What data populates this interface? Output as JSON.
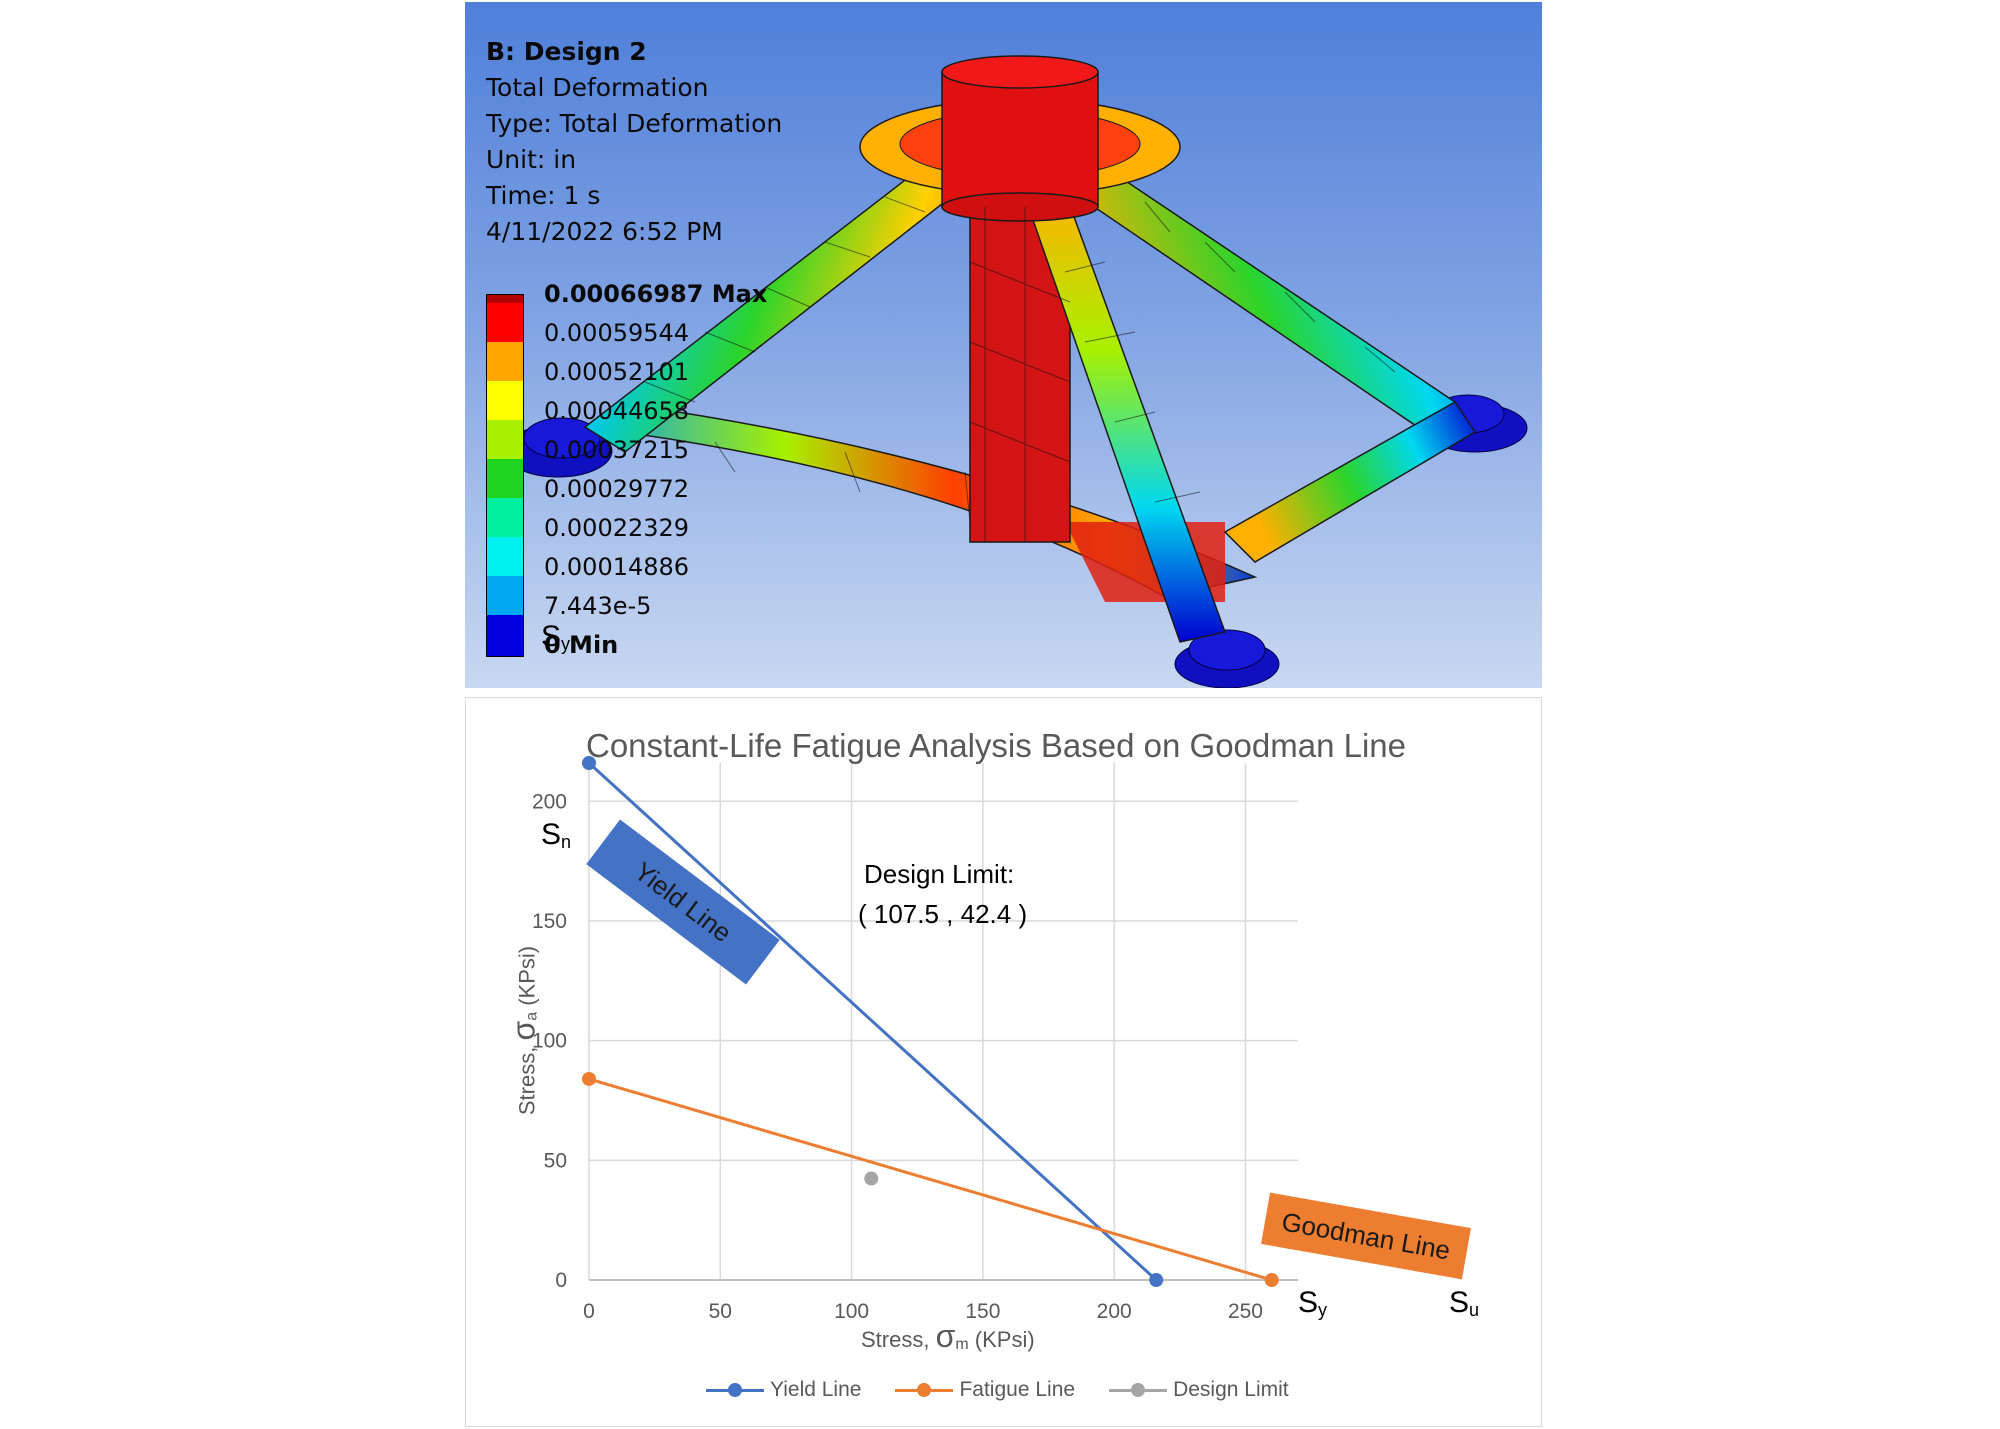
{
  "fea": {
    "title": "B: Design 2",
    "lines": [
      "Total Deformation",
      "Type: Total Deformation",
      "Unit: in",
      "Time: 1 s",
      "4/11/2022 6:52 PM"
    ],
    "legend": [
      {
        "label": "0.00066987 Max",
        "color": "#b00000",
        "bold": true
      },
      {
        "label": "0.00059544",
        "color": "#ff0000",
        "bold": false
      },
      {
        "label": "0.00052101",
        "color": "#ffa500",
        "bold": false
      },
      {
        "label": "0.00044658",
        "color": "#ffff00",
        "bold": false
      },
      {
        "label": "0.00037215",
        "color": "#a8f000",
        "bold": false
      },
      {
        "label": "0.00029772",
        "color": "#1ed41e",
        "bold": false
      },
      {
        "label": "0.00022329",
        "color": "#00f0a0",
        "bold": false
      },
      {
        "label": "0.00014886",
        "color": "#00f0f0",
        "bold": false
      },
      {
        "label": "7.443e-5",
        "color": "#00a8f0",
        "bold": false
      },
      {
        "label": "0 Min",
        "color": "#0000e0",
        "bold": true
      }
    ]
  },
  "chart_data": {
    "type": "scatter",
    "title": "Constant-Life Fatigue Analysis Based on Goodman Line",
    "xlabel": "Stress, σm (KPsi)",
    "ylabel": "Stress, σa (KPsi)",
    "xlim": [
      0,
      270
    ],
    "ylim": [
      0,
      216
    ],
    "x_ticks": [
      0,
      50,
      100,
      150,
      200,
      250
    ],
    "y_ticks": [
      0,
      50,
      100,
      150,
      200
    ],
    "grid": true,
    "legend_position": "bottom",
    "series": [
      {
        "name": "Yield Line",
        "color": "#4472c4",
        "points": [
          [
            0,
            216
          ],
          [
            216,
            0
          ]
        ]
      },
      {
        "name": "Fatigue Line",
        "color": "#ed7d31",
        "points": [
          [
            0,
            84
          ],
          [
            260,
            0
          ]
        ]
      },
      {
        "name": "Design Limit",
        "color": "#a5a5a5",
        "points": [
          [
            107.5,
            42.4
          ]
        ]
      }
    ],
    "annotations": {
      "design_limit_title": "Design Limit:",
      "design_limit_value": "( 107.5 , 42.4 )",
      "yield_band": "Yield Line",
      "goodman_band": "Goodman Line",
      "sy_top": {
        "main": "S",
        "sub": "y"
      },
      "sn_left": {
        "main": "S",
        "sub": "n"
      },
      "sy_bottom": {
        "main": "S",
        "sub": "y"
      },
      "su_bottom": {
        "main": "S",
        "sub": "u"
      }
    },
    "axis_title_parts": {
      "x_prefix": "Stress, ",
      "x_symbol": "σ",
      "x_sub": "m",
      "x_suffix": " (KPsi)",
      "y_prefix": "Stress, ",
      "y_symbol": "σ",
      "y_sub": "a",
      "y_suffix": " (KPsi)"
    }
  }
}
